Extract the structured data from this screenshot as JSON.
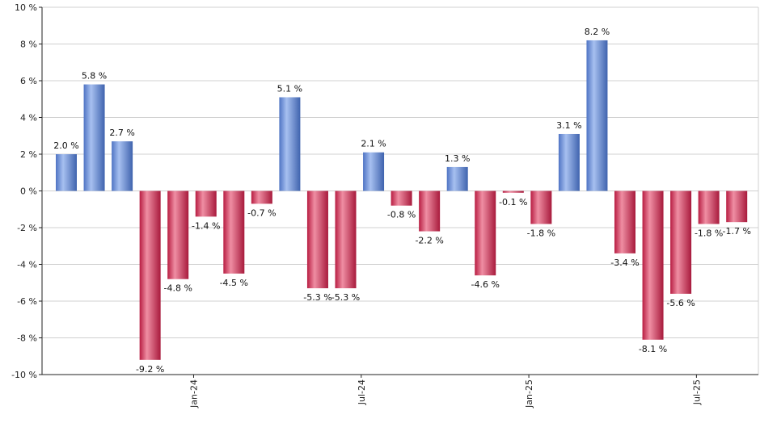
{
  "chart_data": {
    "type": "bar",
    "title": "",
    "xlabel": "",
    "ylabel": "",
    "ylim": [
      -10,
      10
    ],
    "y_ticks": [
      10,
      8,
      6,
      4,
      2,
      0,
      -2,
      -4,
      -6,
      -8,
      -10
    ],
    "y_tick_suffix": " %",
    "grid": true,
    "x_axis_labels": [
      {
        "label": "Jan-24",
        "after_index": 4
      },
      {
        "label": "Jul-24",
        "after_index": 10
      },
      {
        "label": "Jan-25",
        "after_index": 16
      },
      {
        "label": "Jul-25",
        "after_index": 22
      }
    ],
    "values": [
      2.0,
      5.8,
      2.7,
      -9.2,
      -4.8,
      -1.4,
      -4.5,
      -0.7,
      5.1,
      -5.3,
      -5.3,
      2.1,
      -0.8,
      -2.2,
      1.3,
      -4.6,
      -0.1,
      -1.8,
      3.1,
      8.2,
      -3.4,
      -8.1,
      -5.6,
      -1.8,
      -1.7
    ],
    "data_labels": [
      "2.0 %",
      "5.8 %",
      "2.7 %",
      "-9.2 %",
      "-4.8 %",
      "-1.4 %",
      "-4.5 %",
      "-0.7 %",
      "5.1 %",
      "-5.3 %",
      "-5.3 %",
      "2.1 %",
      "-0.8 %",
      "-2.2 %",
      "1.3 %",
      "-4.6 %",
      "-0.1 %",
      "-1.8 %",
      "3.1 %",
      "8.2 %",
      "-3.4 %",
      "-8.1 %",
      "-5.6 %",
      "-1.8 %",
      "-1.7 %"
    ],
    "colors": {
      "positive": "#6f94dd",
      "negative": "#cc3355",
      "grid": "#d0d0d0",
      "axis": "#222222"
    }
  }
}
